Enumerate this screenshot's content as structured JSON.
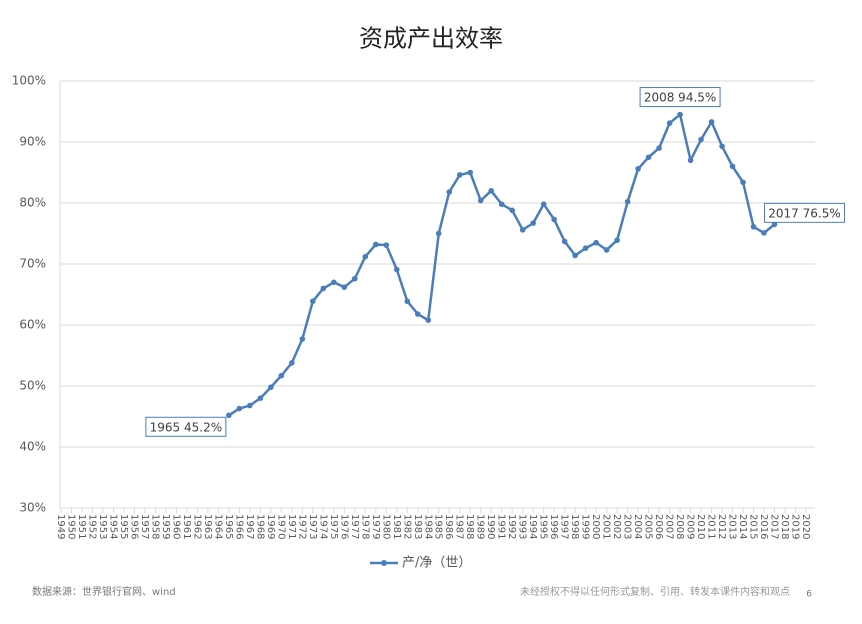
{
  "chart_data": {
    "type": "line",
    "title": "资成产出效率",
    "categories": [
      "1949",
      "1950",
      "1951",
      "1952",
      "1953",
      "1954",
      "1955",
      "1956",
      "1957",
      "1958",
      "1959",
      "1960",
      "1961",
      "1962",
      "1963",
      "1964",
      "1965",
      "1966",
      "1967",
      "1968",
      "1969",
      "1970",
      "1971",
      "1972",
      "1973",
      "1974",
      "1975",
      "1976",
      "1977",
      "1978",
      "1979",
      "1980",
      "1981",
      "1982",
      "1983",
      "1984",
      "1985",
      "1986",
      "1987",
      "1988",
      "1989",
      "1990",
      "1991",
      "1992",
      "1993",
      "1994",
      "1995",
      "1996",
      "1997",
      "1998",
      "1999",
      "2000",
      "2001",
      "2002",
      "2003",
      "2004",
      "2005",
      "2006",
      "2007",
      "2008",
      "2009",
      "2010",
      "2011",
      "2012",
      "2013",
      "2014",
      "2015",
      "2016",
      "2017",
      "2018",
      "2019",
      "2020"
    ],
    "series": [
      {
        "name": "产/净（世）",
        "color": "#4a7ebb",
        "values": [
          null,
          null,
          null,
          null,
          null,
          null,
          null,
          null,
          null,
          null,
          null,
          null,
          null,
          null,
          null,
          null,
          45.2,
          46.3,
          46.8,
          48.0,
          49.8,
          51.7,
          53.8,
          57.7,
          63.9,
          66.0,
          67.0,
          66.2,
          67.6,
          71.2,
          73.2,
          73.1,
          69.1,
          63.9,
          61.8,
          60.8,
          75.0,
          81.8,
          84.6,
          85.0,
          80.4,
          82.0,
          79.8,
          78.8,
          75.6,
          76.7,
          79.8,
          77.3,
          73.7,
          71.4,
          72.6,
          73.5,
          72.3,
          73.9,
          80.2,
          85.6,
          87.5,
          89.0,
          93.1,
          94.5,
          87.0,
          90.4,
          93.3,
          89.3,
          86.0,
          83.4,
          76.1,
          75.1,
          76.5,
          null,
          null,
          null
        ],
        "value_labels": [
          null,
          null,
          null,
          null,
          null,
          null,
          null,
          null,
          null,
          null,
          null,
          null,
          null,
          null,
          null,
          null,
          "1965  45.2%",
          null,
          null,
          null,
          null,
          null,
          null,
          null,
          null,
          null,
          null,
          null,
          null,
          null,
          null,
          null,
          null,
          null,
          null,
          null,
          null,
          null,
          null,
          null,
          null,
          null,
          null,
          null,
          null,
          null,
          null,
          null,
          null,
          null,
          null,
          null,
          null,
          null,
          null,
          null,
          null,
          null,
          null,
          "2008  94.5%",
          null,
          null,
          null,
          null,
          null,
          null,
          null,
          null,
          "2017  76.5%",
          null,
          null,
          null
        ]
      }
    ],
    "ylim": [
      30,
      100
    ],
    "yticks": [
      {
        "value": 30,
        "label": "30%"
      },
      {
        "value": 40,
        "label": "40%"
      },
      {
        "value": 50,
        "label": "50%"
      },
      {
        "value": 60,
        "label": "60%"
      },
      {
        "value": 70,
        "label": "70%"
      },
      {
        "value": 80,
        "label": "80%"
      },
      {
        "value": 90,
        "label": "90%"
      },
      {
        "value": 100,
        "label": "100%"
      }
    ],
    "grid": true
  },
  "footer": {
    "source": "数据来源：世界银行官网、wind",
    "notice": "未经授权不得以任何形式复制、引用、转发本课件内容和观点",
    "page": "6"
  }
}
